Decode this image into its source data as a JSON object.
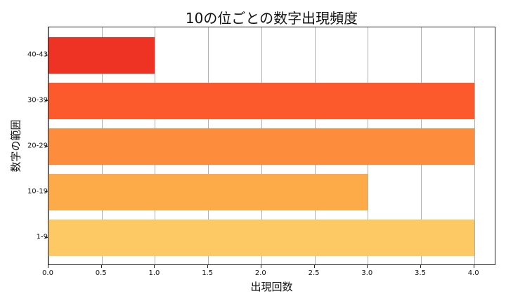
{
  "chart_data": {
    "type": "bar",
    "orientation": "horizontal",
    "title": "10の位ごとの数字出現頻度",
    "xlabel": "出現回数",
    "ylabel": "数字の範囲",
    "categories": [
      "1-9",
      "10-19",
      "20-29",
      "30-39",
      "40-43"
    ],
    "values": [
      4,
      3,
      4,
      4,
      1
    ],
    "colors": [
      "#fdc965",
      "#fdaa48",
      "#fd8d3c",
      "#fc5a2d",
      "#ee3224"
    ],
    "xlim": [
      0,
      4.2
    ],
    "xticks": [
      "0.0",
      "0.5",
      "1.0",
      "1.5",
      "2.0",
      "2.5",
      "3.0",
      "3.5",
      "4.0"
    ],
    "grid": "x",
    "legend": null
  }
}
